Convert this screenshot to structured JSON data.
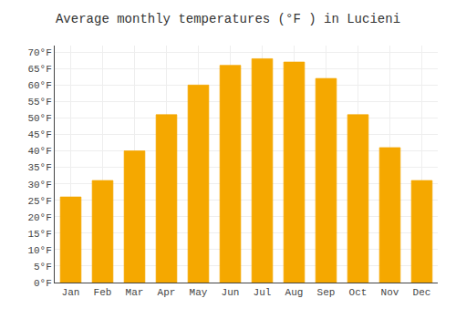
{
  "chart_data": {
    "type": "bar",
    "title": "Average monthly temperatures (°F ) in Lucieni",
    "categories": [
      "Jan",
      "Feb",
      "Mar",
      "Apr",
      "May",
      "Jun",
      "Jul",
      "Aug",
      "Sep",
      "Oct",
      "Nov",
      "Dec"
    ],
    "values": [
      26,
      31,
      40,
      51,
      60,
      66,
      68,
      67,
      62,
      51,
      41,
      31
    ],
    "color": "#F5A800",
    "ylim": [
      0,
      72
    ],
    "yticks": [
      {
        "value": 0,
        "label": "0°F"
      },
      {
        "value": 5,
        "label": "5°F"
      },
      {
        "value": 10,
        "label": "10°F"
      },
      {
        "value": 15,
        "label": "15°F"
      },
      {
        "value": 20,
        "label": "20°F"
      },
      {
        "value": 25,
        "label": "25°F"
      },
      {
        "value": 30,
        "label": "30°F"
      },
      {
        "value": 35,
        "label": "35°F"
      },
      {
        "value": 40,
        "label": "40°F"
      },
      {
        "value": 45,
        "label": "45°F"
      },
      {
        "value": 50,
        "label": "50°F"
      },
      {
        "value": 55,
        "label": "55°F"
      },
      {
        "value": 60,
        "label": "60°F"
      },
      {
        "value": 65,
        "label": "65°F"
      },
      {
        "value": 70,
        "label": "70°F"
      }
    ],
    "grid": true
  }
}
